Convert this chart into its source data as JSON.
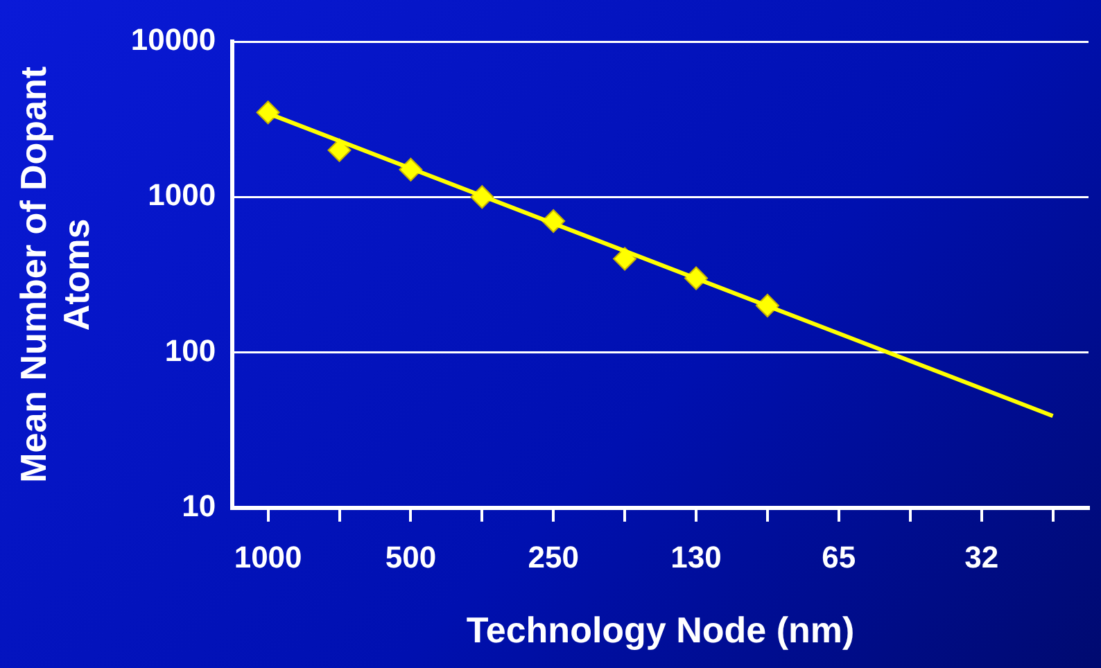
{
  "chart_data": {
    "type": "scatter",
    "xlabel": "Technology Node (nm)",
    "ylabel": "Mean Number of Dopant Atoms",
    "categories": [
      "1000",
      null,
      "500",
      null,
      "250",
      null,
      "130",
      null,
      "65",
      null,
      "32",
      null
    ],
    "series": [
      {
        "type": "line",
        "color": "#ffff00",
        "marker": "none",
        "values": [
          3450,
          null,
          null,
          null,
          null,
          null,
          null,
          null,
          null,
          null,
          null,
          39
        ]
      },
      {
        "type": "scatter",
        "color": "#ffff00",
        "values": [
          3500,
          2000,
          1500,
          1000,
          700,
          400,
          300,
          200,
          null,
          null,
          null,
          null
        ]
      }
    ],
    "log": true,
    "ylim": [
      10,
      10000
    ],
    "yticks": [
      10,
      100,
      1000,
      10000
    ],
    "grid": "y",
    "marker": "diamond",
    "legend": false
  }
}
